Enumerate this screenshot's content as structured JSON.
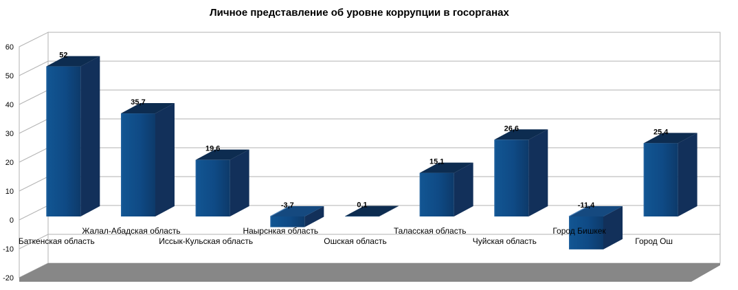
{
  "chart_data": {
    "type": "bar",
    "projection": "3d",
    "title": "Личное представление об уровне коррупции в госорганах",
    "categories": [
      "Баткенская область",
      "Жалал-Абадская область",
      "Иссык-Кульская область",
      "Наырснкая область",
      "Ошская область",
      "Таласская область",
      "Чуйская область",
      "Город Бишкек",
      "Город Ош"
    ],
    "values": [
      52,
      35.7,
      19.6,
      -3.7,
      0.1,
      15.1,
      26.6,
      -11.4,
      25.4
    ],
    "value_labels": [
      "52",
      "35,7",
      "19,6",
      "-3,7",
      "0,1",
      "15,1",
      "26,6",
      "-11,4",
      "25,4"
    ],
    "yticks": [
      60,
      50,
      40,
      30,
      20,
      10,
      0,
      -10,
      -20
    ],
    "ytick_labels": [
      "60",
      "50",
      "40",
      "30",
      "20",
      "10",
      "0",
      "-10",
      "-20"
    ],
    "ylim": [
      -20,
      60
    ],
    "grid": true,
    "legend": "none",
    "colors": {
      "bar_front_light": "#125693",
      "bar_front": "#0f4a85",
      "bar_front_dark": "#0d3a6a",
      "bar_side": "#12305a",
      "bar_top": "#0d2c50",
      "bar_top_negative": "#15497f",
      "bar_bevel": "#4079b2",
      "gridline": "#b2b2b2",
      "floor": "#878787",
      "wall": "#ffffff",
      "text": "#000000",
      "background": "#ffffff"
    }
  }
}
